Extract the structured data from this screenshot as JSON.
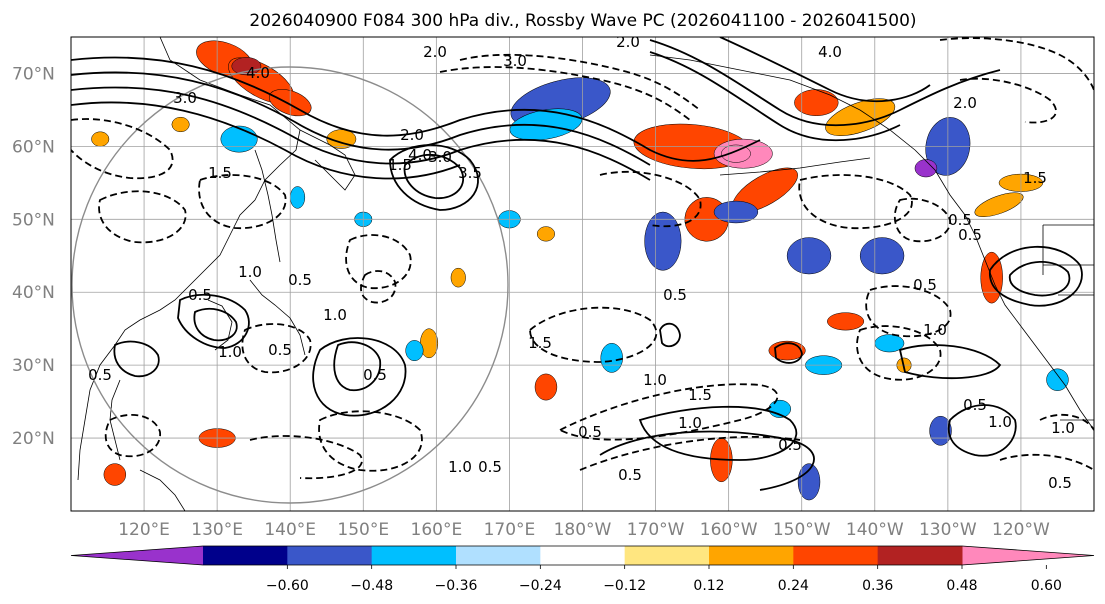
{
  "chart_data": {
    "type": "heatmap",
    "title": "2026040900 F084 300 hPa div., Rossby Wave PC (2026041100 - 2026041500)",
    "projection": "map",
    "lon_range": [
      110,
      250
    ],
    "lat_range": [
      10,
      75
    ],
    "lat_ticks": [
      {
        "value": 70,
        "label": "70°N"
      },
      {
        "value": 60,
        "label": "60°N"
      },
      {
        "value": 50,
        "label": "50°N"
      },
      {
        "value": 40,
        "label": "40°N"
      },
      {
        "value": 30,
        "label": "30°N"
      },
      {
        "value": 20,
        "label": "20°N"
      }
    ],
    "lon_ticks": [
      {
        "value": 120,
        "label": "120°E"
      },
      {
        "value": 130,
        "label": "130°E"
      },
      {
        "value": 140,
        "label": "140°E"
      },
      {
        "value": 150,
        "label": "150°E"
      },
      {
        "value": 160,
        "label": "160°E"
      },
      {
        "value": 170,
        "label": "170°E"
      },
      {
        "value": 180,
        "label": "180°W"
      },
      {
        "value": 190,
        "label": "170°W"
      },
      {
        "value": 200,
        "label": "160°W"
      },
      {
        "value": 210,
        "label": "150°W"
      },
      {
        "value": 220,
        "label": "140°W"
      },
      {
        "value": 230,
        "label": "130°W"
      },
      {
        "value": 240,
        "label": "120°W"
      }
    ],
    "colorbar": {
      "extend": "both",
      "levels": [
        -0.72,
        -0.6,
        -0.48,
        -0.36,
        -0.24,
        -0.12,
        0.12,
        0.24,
        0.36,
        0.48,
        0.6,
        0.72
      ],
      "tick_labels": [
        "−0.60",
        "−0.48",
        "−0.36",
        "−0.24",
        "−0.12",
        "0.12",
        "0.24",
        "0.36",
        "0.48",
        "0.60"
      ],
      "colors": [
        "#9932cc",
        "#00008b",
        "#3a57c9",
        "#00bfff",
        "#b0e0ff",
        "#ffffff",
        "#ffe680",
        "#ffa500",
        "#ff4500",
        "#b22222",
        "#ff88bb"
      ]
    },
    "shaded_blobs": [
      {
        "lon": 131,
        "lat": 72,
        "rx": 4,
        "ry": 2.2,
        "value": 0.36,
        "rot": 20
      },
      {
        "lon": 136,
        "lat": 69,
        "rx": 5,
        "ry": 2.2,
        "value": 0.45,
        "rot": 30
      },
      {
        "lon": 134,
        "lat": 71,
        "rx": 2,
        "ry": 1.2,
        "value": 0.55,
        "rot": 0
      },
      {
        "lon": 140,
        "lat": 66,
        "rx": 3,
        "ry": 1.6,
        "value": 0.4,
        "rot": 20
      },
      {
        "lon": 177,
        "lat": 66,
        "rx": 7,
        "ry": 3.0,
        "value": -0.45,
        "rot": -15
      },
      {
        "lon": 175,
        "lat": 63,
        "rx": 5,
        "ry": 2.0,
        "value": -0.3,
        "rot": -10
      },
      {
        "lon": 195,
        "lat": 60,
        "rx": 8,
        "ry": 3.0,
        "value": 0.42,
        "rot": 5
      },
      {
        "lon": 202,
        "lat": 59,
        "rx": 4,
        "ry": 2.0,
        "value": 0.6,
        "rot": 0
      },
      {
        "lon": 201,
        "lat": 59,
        "rx": 2,
        "ry": 1.2,
        "value": 0.75,
        "rot": 0
      },
      {
        "lon": 205,
        "lat": 54,
        "rx": 5,
        "ry": 2.0,
        "value": 0.45,
        "rot": -30
      },
      {
        "lon": 197,
        "lat": 50,
        "rx": 3,
        "ry": 3.0,
        "value": 0.42,
        "rot": -40
      },
      {
        "lon": 191,
        "lat": 47,
        "rx": 2.5,
        "ry": 4.0,
        "value": -0.45,
        "rot": 0
      },
      {
        "lon": 212,
        "lat": 66,
        "rx": 3,
        "ry": 1.8,
        "value": 0.45,
        "rot": 0
      },
      {
        "lon": 218,
        "lat": 64,
        "rx": 5,
        "ry": 2.0,
        "value": 0.35,
        "rot": -20
      },
      {
        "lon": 230,
        "lat": 60,
        "rx": 3,
        "ry": 4.0,
        "value": -0.45,
        "rot": 10
      },
      {
        "lon": 227,
        "lat": 57,
        "rx": 1.5,
        "ry": 1.2,
        "value": -0.65,
        "rot": 0
      },
      {
        "lon": 221,
        "lat": 45,
        "rx": 3,
        "ry": 2.5,
        "value": -0.4,
        "rot": 0
      },
      {
        "lon": 211,
        "lat": 45,
        "rx": 3,
        "ry": 2.5,
        "value": -0.42,
        "rot": 0
      },
      {
        "lon": 201,
        "lat": 51,
        "rx": 3,
        "ry": 1.5,
        "value": -0.4,
        "rot": 0
      },
      {
        "lon": 236,
        "lat": 42,
        "rx": 1.5,
        "ry": 3.5,
        "value": 0.42,
        "rot": 0
      },
      {
        "lon": 237,
        "lat": 52,
        "rx": 3.5,
        "ry": 1.2,
        "value": 0.3,
        "rot": -20
      },
      {
        "lon": 240,
        "lat": 55,
        "rx": 3,
        "ry": 1.2,
        "value": 0.3,
        "rot": 0
      },
      {
        "lon": 133,
        "lat": 61,
        "rx": 2.5,
        "ry": 1.8,
        "value": -0.35,
        "rot": 0
      },
      {
        "lon": 147,
        "lat": 61,
        "rx": 2,
        "ry": 1.3,
        "value": 0.35,
        "rot": 0
      },
      {
        "lon": 125,
        "lat": 63,
        "rx": 1.2,
        "ry": 1.0,
        "value": 0.3,
        "rot": 0
      },
      {
        "lon": 114,
        "lat": 61,
        "rx": 1.2,
        "ry": 1.0,
        "value": 0.35,
        "rot": 0
      },
      {
        "lon": 159,
        "lat": 33,
        "rx": 1.2,
        "ry": 2.0,
        "value": 0.35,
        "rot": 0
      },
      {
        "lon": 163,
        "lat": 42,
        "rx": 1.0,
        "ry": 1.3,
        "value": 0.3,
        "rot": 0
      },
      {
        "lon": 157,
        "lat": 32,
        "rx": 1.2,
        "ry": 1.4,
        "value": -0.3,
        "rot": 0
      },
      {
        "lon": 175,
        "lat": 27,
        "rx": 1.5,
        "ry": 1.8,
        "value": 0.38,
        "rot": 0
      },
      {
        "lon": 184,
        "lat": 31,
        "rx": 1.5,
        "ry": 2.0,
        "value": -0.3,
        "rot": 0
      },
      {
        "lon": 208,
        "lat": 32,
        "rx": 2.5,
        "ry": 1.3,
        "value": 0.42,
        "rot": 0
      },
      {
        "lon": 213,
        "lat": 30,
        "rx": 2.5,
        "ry": 1.3,
        "value": -0.3,
        "rot": 0
      },
      {
        "lon": 216,
        "lat": 36,
        "rx": 2.5,
        "ry": 1.2,
        "value": 0.38,
        "rot": 0
      },
      {
        "lon": 199,
        "lat": 17,
        "rx": 1.5,
        "ry": 3.0,
        "value": 0.38,
        "rot": 0
      },
      {
        "lon": 211,
        "lat": 14,
        "rx": 1.5,
        "ry": 2.5,
        "value": -0.38,
        "rot": 0
      },
      {
        "lon": 229,
        "lat": 21,
        "rx": 1.5,
        "ry": 2.0,
        "value": -0.4,
        "rot": 0
      },
      {
        "lon": 116,
        "lat": 15,
        "rx": 1.5,
        "ry": 1.5,
        "value": 0.42,
        "rot": 0
      },
      {
        "lon": 130,
        "lat": 20,
        "rx": 2.5,
        "ry": 1.3,
        "value": 0.38,
        "rot": 0
      },
      {
        "lon": 207,
        "lat": 24,
        "rx": 1.5,
        "ry": 1.2,
        "value": -0.3,
        "rot": 0
      },
      {
        "lon": 245,
        "lat": 28,
        "rx": 1.5,
        "ry": 1.5,
        "value": -0.3,
        "rot": 0
      },
      {
        "lon": 170,
        "lat": 50,
        "rx": 1.5,
        "ry": 1.2,
        "value": -0.3,
        "rot": 0
      },
      {
        "lon": 150,
        "lat": 50,
        "rx": 1.2,
        "ry": 1.0,
        "value": -0.3,
        "rot": 0
      },
      {
        "lon": 141,
        "lat": 53,
        "rx": 1.0,
        "ry": 1.5,
        "value": -0.35,
        "rot": 0
      },
      {
        "lon": 175,
        "lat": 48,
        "rx": 1.2,
        "ry": 1.0,
        "value": 0.3,
        "rot": 0
      },
      {
        "lon": 222,
        "lat": 33,
        "rx": 2.0,
        "ry": 1.2,
        "value": -0.3,
        "rot": 0
      },
      {
        "lon": 224,
        "lat": 30,
        "rx": 1.0,
        "ry": 1.0,
        "value": 0.3,
        "rot": 0
      }
    ],
    "contour_labels": [
      "3.0",
      "4.0",
      "3.0",
      "2.0",
      "3.5",
      "3.0",
      "2.0",
      "1.5",
      "1.5",
      "4.0",
      "2.0",
      "1.0",
      "1.0",
      "0.5",
      "1.0",
      "0.5",
      "0.5",
      "0.5",
      "1.0",
      "0.5",
      "1.5",
      "1.0",
      "0.5",
      "1.5",
      "1.0",
      "0.5",
      "1.0",
      "0.5",
      "1.0",
      "0.5",
      "0.5",
      "2.0",
      "0.5",
      "1.0",
      "0.5",
      "0.5",
      "4.0",
      "1.5",
      "0.5",
      "0.5"
    ]
  }
}
